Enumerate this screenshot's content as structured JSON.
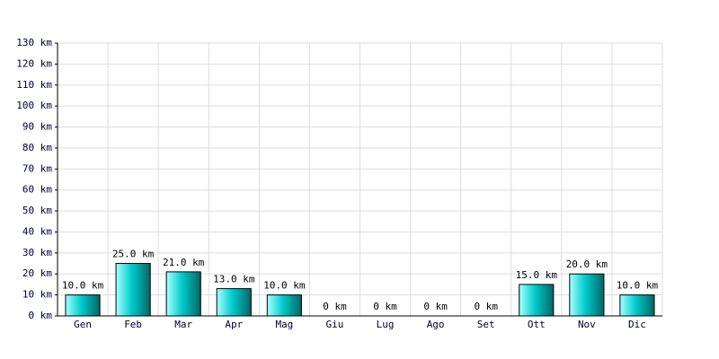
{
  "chart_data": {
    "type": "bar",
    "categories": [
      "Gen",
      "Feb",
      "Mar",
      "Apr",
      "Mag",
      "Giu",
      "Lug",
      "Ago",
      "Set",
      "Ott",
      "Nov",
      "Dic"
    ],
    "values": [
      10,
      25,
      21,
      13,
      10,
      0,
      0,
      0,
      0,
      15,
      20,
      10
    ],
    "value_labels": [
      "10.0 km",
      "25.0 km",
      "21.0 km",
      "13.0 km",
      "10.0 km",
      "0 km",
      "0 km",
      "0 km",
      "0 km",
      "15.0 km",
      "20.0 km",
      "10.0 km"
    ],
    "color": "#00cccc",
    "ylim": [
      0,
      130
    ],
    "yticks": [
      {
        "value": 0,
        "label": "0 km"
      },
      {
        "value": 10,
        "label": "10 km"
      },
      {
        "value": 20,
        "label": "20 km"
      },
      {
        "value": 30,
        "label": "30 km"
      },
      {
        "value": 40,
        "label": "40 km"
      },
      {
        "value": 50,
        "label": "50 km"
      },
      {
        "value": 60,
        "label": "60 km"
      },
      {
        "value": 70,
        "label": "70 km"
      },
      {
        "value": 80,
        "label": "80 km"
      },
      {
        "value": 90,
        "label": "90 km"
      },
      {
        "value": 100,
        "label": "100 km"
      },
      {
        "value": 110,
        "label": "110 km"
      },
      {
        "value": 120,
        "label": "120 km"
      },
      {
        "value": 130,
        "label": "130 km"
      }
    ],
    "grid": true
  }
}
